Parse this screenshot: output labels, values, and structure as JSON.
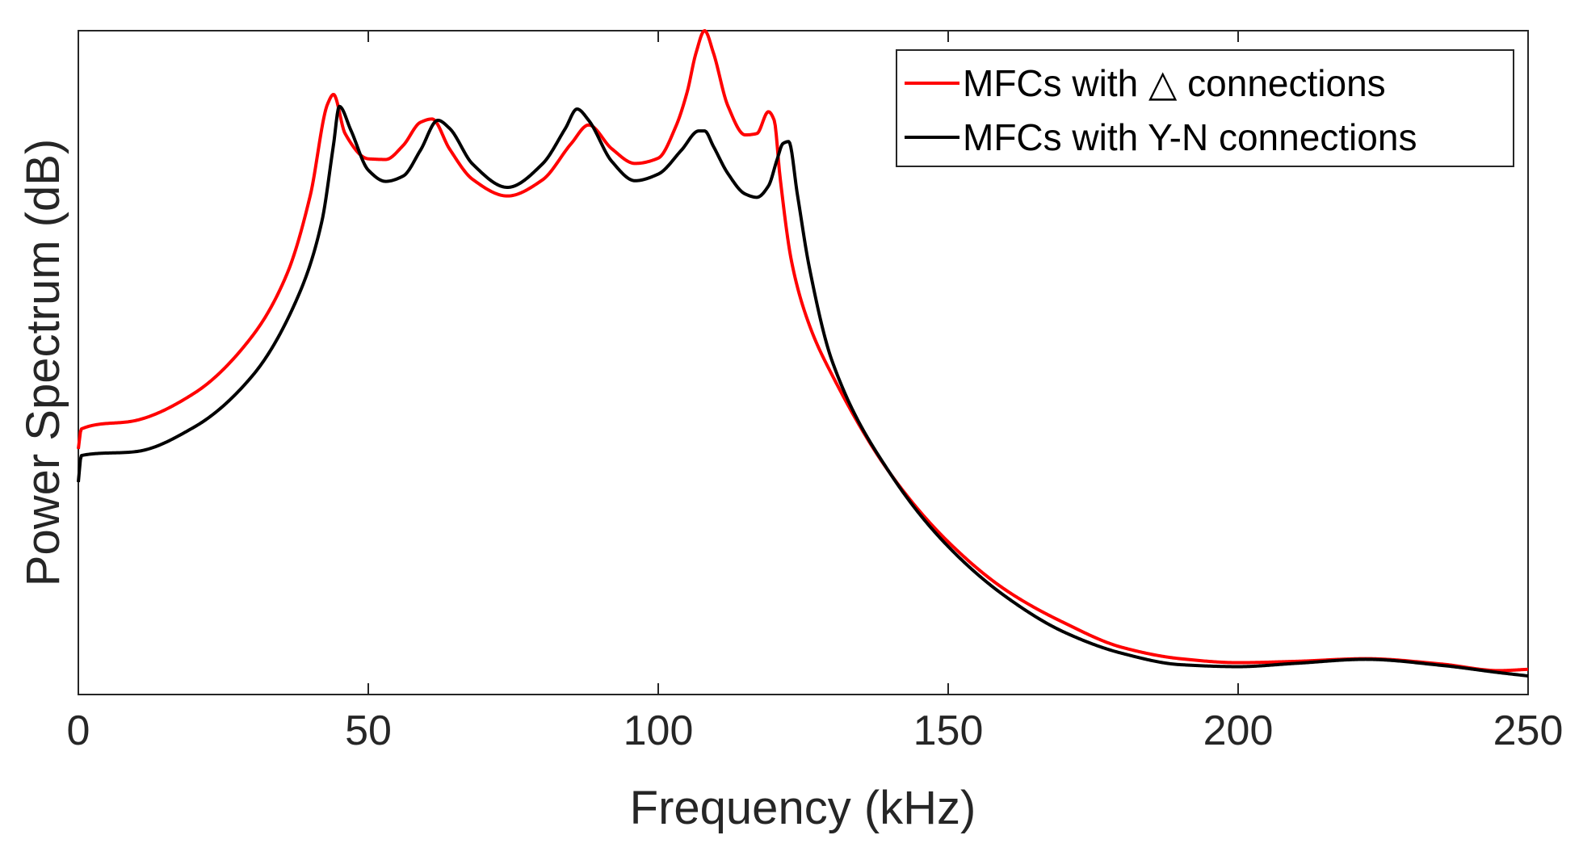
{
  "chart_data": {
    "type": "line",
    "title": "",
    "xlabel": "Frequency (kHz)",
    "ylabel": "Power Spectrum (dB)",
    "xlim": [
      0,
      250
    ],
    "ylim": [
      0,
      100
    ],
    "xticks": [
      0,
      50,
      100,
      150,
      200,
      250
    ],
    "xtick_labels": [
      "0",
      "50",
      "100",
      "150",
      "200",
      "250"
    ],
    "yticks_shown": false,
    "grid": false,
    "legend_position": "top-right",
    "series": [
      {
        "name": "MFCs with △ connections",
        "color": "#ff0000",
        "x": [
          0,
          0.5,
          10,
          20,
          30,
          36,
          40,
          43,
          44,
          46,
          50,
          53,
          56,
          59,
          61,
          64,
          68,
          74,
          80,
          85,
          88,
          92,
          96,
          100,
          103,
          105,
          106.5,
          108,
          109.5,
          112,
          115,
          117,
          119,
          120,
          121,
          123,
          126,
          130,
          140,
          150,
          160,
          170,
          180,
          190,
          200,
          210,
          222,
          235,
          245,
          250
        ],
        "y": [
          37,
          40,
          41.3,
          45.4,
          54,
          63.4,
          75.2,
          89,
          90.4,
          84.5,
          80.7,
          80.6,
          82.7,
          86.2,
          86.7,
          82.2,
          77.6,
          75.1,
          77.5,
          83,
          85.8,
          82.2,
          80,
          80.8,
          85.5,
          90.8,
          96.6,
          100,
          96.7,
          88.7,
          84.3,
          84.5,
          87.8,
          86.5,
          78,
          65.2,
          55.8,
          48.1,
          33.3,
          23,
          15.7,
          10.8,
          7.1,
          5.4,
          4.8,
          5,
          5.4,
          4.6,
          3.6,
          3.8
        ]
      },
      {
        "name": "MFCs with Y-N connections",
        "color": "#000000",
        "x": [
          0,
          0.5,
          10,
          20,
          30,
          38,
          42,
          44,
          45,
          47,
          50,
          53,
          56,
          59,
          62,
          64,
          68,
          74,
          80,
          84,
          86,
          88,
          92,
          96,
          100,
          104,
          107,
          108,
          109.5,
          112,
          115,
          117,
          119,
          120.5,
          121.5,
          122.5,
          124,
          126,
          130,
          140,
          150,
          160,
          170,
          180,
          190,
          200,
          210,
          222,
          235,
          245,
          250
        ],
        "y": [
          32,
          36,
          36.6,
          40.3,
          48,
          60.2,
          71.3,
          82.8,
          88.6,
          85,
          79,
          77.3,
          78.1,
          82,
          86.5,
          85.3,
          79.9,
          76.4,
          79.9,
          85.3,
          88.2,
          86.5,
          80.3,
          77.4,
          78.4,
          82,
          84.9,
          84.9,
          82.6,
          78.5,
          75.4,
          74.9,
          76.6,
          80.6,
          83,
          83.3,
          75.3,
          64.6,
          50.2,
          33.3,
          22.3,
          14.7,
          9.4,
          6.2,
          4.5,
          4.2,
          4.7,
          5.3,
          4.4,
          3.3,
          2.8
        ]
      }
    ]
  }
}
